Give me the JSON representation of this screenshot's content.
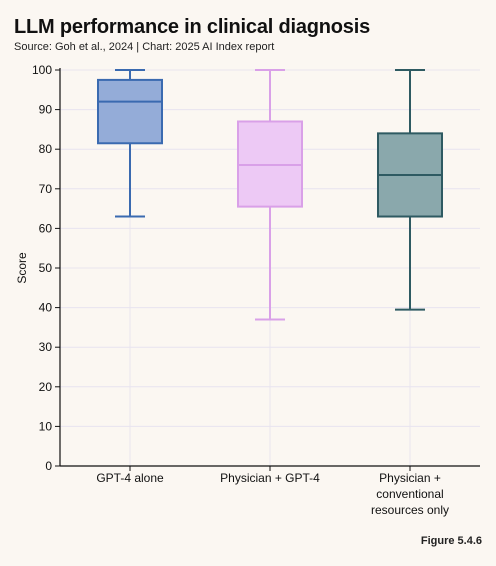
{
  "header": {
    "title": "LLM performance in clinical diagnosis",
    "subtitle": "Source: Goh et al., 2024 | Chart: 2025 AI Index report"
  },
  "footer": {
    "figure_label": "Figure 5.4.6"
  },
  "chart_data": {
    "type": "box",
    "ylabel": "Score",
    "ylim": [
      0,
      100
    ],
    "yticks": [
      0,
      10,
      20,
      30,
      40,
      50,
      60,
      70,
      80,
      90,
      100
    ],
    "grid": true,
    "series": [
      {
        "label_lines": [
          "GPT-4 alone"
        ],
        "min": 63,
        "q1": 81.5,
        "median": 92,
        "q3": 97.5,
        "max": 100,
        "fill": "#94acd8",
        "stroke": "#3a6ab0"
      },
      {
        "label_lines": [
          "Physician + GPT-4"
        ],
        "min": 37,
        "q1": 65.5,
        "median": 76,
        "q3": 87,
        "max": 100,
        "fill": "#edc9f5",
        "stroke": "#d9a0e8"
      },
      {
        "label_lines": [
          "Physician +",
          "conventional",
          "resources only"
        ],
        "min": 39.5,
        "q1": 63,
        "median": 73.5,
        "q3": 84,
        "max": 100,
        "fill": "#8aa8ac",
        "stroke": "#2e5a62"
      }
    ]
  }
}
